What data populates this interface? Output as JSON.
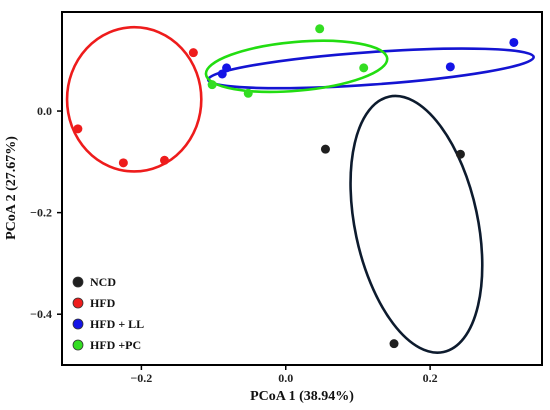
{
  "chart_data": {
    "type": "scatter",
    "title": "",
    "xlabel": "PCoA 1 (38.94%)",
    "ylabel": "PCoA 2 (27.67%)",
    "xlim": [
      -0.31,
      0.355
    ],
    "ylim": [
      -0.5,
      0.195
    ],
    "x_ticks": [
      -0.2,
      0.0,
      0.2
    ],
    "x_tick_labels": [
      "−0.2",
      "0.0",
      "0.2"
    ],
    "y_ticks": [
      0.0,
      -0.2,
      -0.4
    ],
    "y_tick_labels": [
      "0.0",
      "−0.2",
      "−0.4"
    ],
    "grid": false,
    "legend_position": "bottom-left",
    "series": [
      {
        "name": "NCD",
        "color": "#1f1f1f",
        "ellipse_color": "#0d1b2e",
        "points": [
          [
            0.055,
            -0.075
          ],
          [
            0.242,
            -0.085
          ],
          [
            0.15,
            -0.458
          ]
        ],
        "ellipse": {
          "cx": 0.181,
          "cy": -0.223,
          "rx": 0.085,
          "ry": 0.257,
          "angle": -12
        }
      },
      {
        "name": "HFD",
        "color": "#ee1c1c",
        "ellipse_color": "#ee1c1c",
        "points": [
          [
            -0.288,
            -0.035
          ],
          [
            -0.225,
            -0.102
          ],
          [
            -0.168,
            -0.097
          ],
          [
            -0.128,
            0.115
          ]
        ],
        "ellipse": {
          "cx": -0.21,
          "cy": 0.023,
          "rx": 0.093,
          "ry": 0.142,
          "angle": 0
        }
      },
      {
        "name": "HFD + LL",
        "color": "#1414e6",
        "ellipse_color": "#1414d2",
        "points": [
          [
            -0.088,
            0.073
          ],
          [
            -0.082,
            0.085
          ],
          [
            0.228,
            0.087
          ],
          [
            0.316,
            0.135
          ]
        ],
        "ellipse": {
          "cx": 0.0,
          "cy": 0.0,
          "rx": 0.0,
          "ry": 0.0,
          "angle": 0
        }
      },
      {
        "name": "HFD +PC",
        "color": "#33dd22",
        "ellipse_color": "#22dd11",
        "points": [
          [
            -0.102,
            0.052
          ],
          [
            -0.052,
            0.035
          ],
          [
            0.047,
            0.162
          ],
          [
            0.108,
            0.085
          ]
        ],
        "ellipse": {
          "cx": 0.0,
          "cy": 0.0,
          "rx": 0.0,
          "ry": 0.0,
          "angle": 0
        }
      }
    ]
  }
}
